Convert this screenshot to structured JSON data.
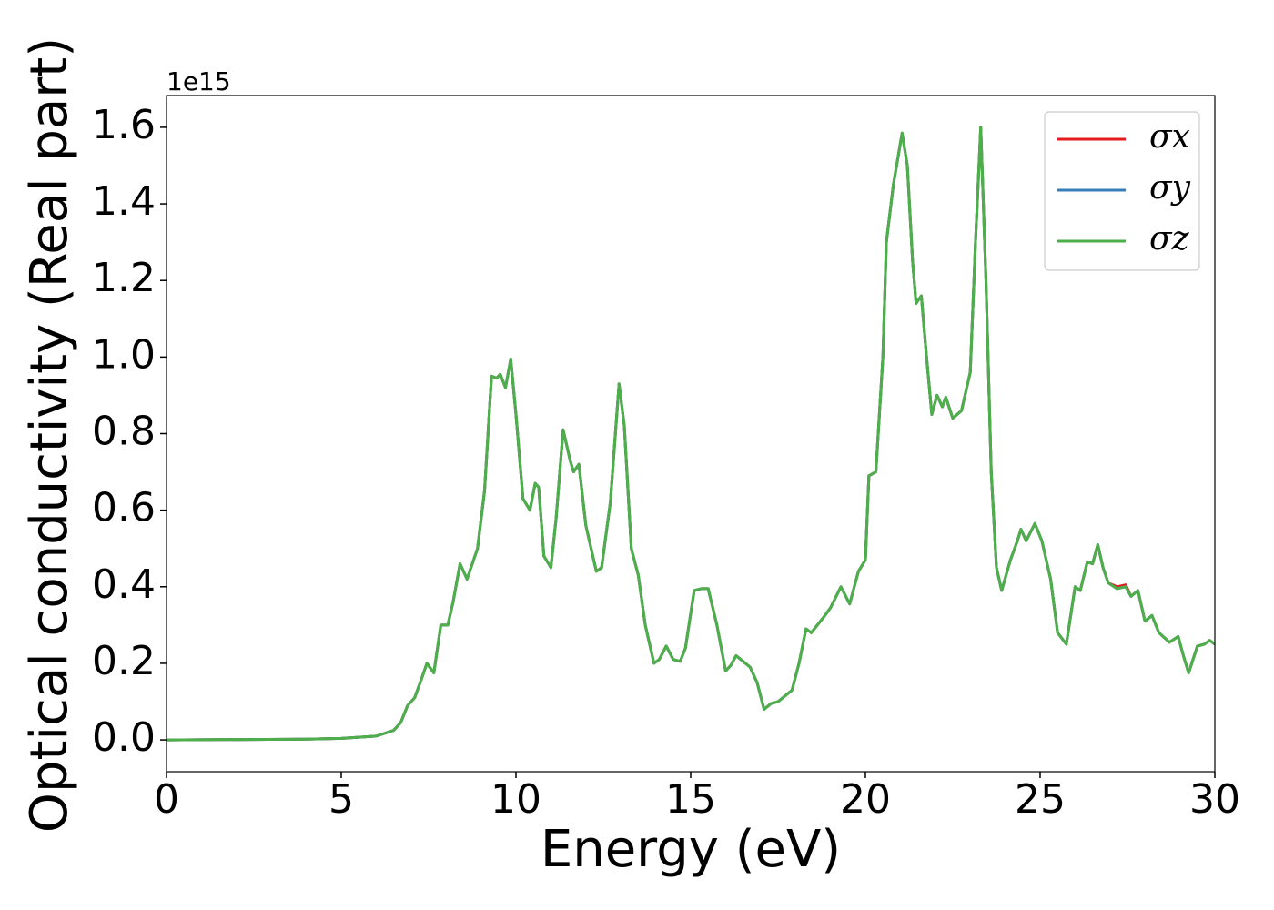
{
  "chart_data": {
    "type": "line",
    "xlabel": "Energy (eV)",
    "ylabel": "Optical conductivity (Real part)",
    "y_offset_label": "1e15",
    "x": [
      0,
      4,
      5,
      6,
      6.5,
      6.7,
      6.9,
      7.1,
      7.3,
      7.45,
      7.65,
      7.85,
      8.05,
      8.2,
      8.4,
      8.6,
      8.9,
      9.1,
      9.3,
      9.45,
      9.55,
      9.7,
      9.85,
      10,
      10.2,
      10.4,
      10.55,
      10.65,
      10.8,
      11,
      11.15,
      11.35,
      11.55,
      11.65,
      11.8,
      12,
      12.3,
      12.45,
      12.7,
      12.95,
      13.1,
      13.3,
      13.5,
      13.7,
      13.95,
      14.1,
      14.3,
      14.5,
      14.7,
      14.85,
      15.1,
      15.3,
      15.5,
      15.75,
      16,
      16.15,
      16.3,
      16.5,
      16.7,
      16.9,
      17.1,
      17.3,
      17.5,
      17.9,
      18.1,
      18.3,
      18.45,
      18.8,
      19,
      19.3,
      19.55,
      19.8,
      20,
      20.1,
      20.3,
      20.5,
      20.6,
      20.8,
      21.05,
      21.2,
      21.35,
      21.45,
      21.6,
      21.75,
      21.9,
      22.05,
      22.2,
      22.3,
      22.5,
      22.75,
      23,
      23.15,
      23.3,
      23.45,
      23.6,
      23.75,
      23.9,
      24.15,
      24.35,
      24.45,
      24.6,
      24.85,
      25.05,
      25.3,
      25.5,
      25.75,
      26,
      26.15,
      26.35,
      26.5,
      26.65,
      26.8,
      26.95,
      27.2,
      27.45,
      27.6,
      27.8,
      28,
      28.2,
      28.4,
      28.7,
      28.95,
      29.1,
      29.25,
      29.5,
      29.7,
      29.85,
      30
    ],
    "series": [
      {
        "name": "σx",
        "color": "#e41a1c",
        "values": [
          0,
          0.002,
          0.004,
          0.01,
          0.025,
          0.045,
          0.09,
          0.11,
          0.16,
          0.2,
          0.175,
          0.3,
          0.3,
          0.36,
          0.46,
          0.42,
          0.5,
          0.65,
          0.95,
          0.945,
          0.955,
          0.92,
          0.995,
          0.85,
          0.63,
          0.6,
          0.67,
          0.66,
          0.48,
          0.45,
          0.58,
          0.81,
          0.73,
          0.7,
          0.72,
          0.56,
          0.44,
          0.45,
          0.62,
          0.93,
          0.82,
          0.5,
          0.43,
          0.3,
          0.2,
          0.21,
          0.245,
          0.21,
          0.205,
          0.24,
          0.39,
          0.395,
          0.395,
          0.3,
          0.18,
          0.195,
          0.22,
          0.205,
          0.19,
          0.15,
          0.08,
          0.095,
          0.1,
          0.13,
          0.2,
          0.29,
          0.28,
          0.32,
          0.345,
          0.4,
          0.355,
          0.44,
          0.47,
          0.69,
          0.7,
          1.0,
          1.3,
          1.45,
          1.585,
          1.5,
          1.25,
          1.14,
          1.16,
          1.0,
          0.85,
          0.9,
          0.87,
          0.895,
          0.84,
          0.86,
          0.96,
          1.3,
          1.6,
          1.2,
          0.7,
          0.45,
          0.39,
          0.47,
          0.52,
          0.55,
          0.52,
          0.565,
          0.52,
          0.42,
          0.28,
          0.25,
          0.4,
          0.39,
          0.465,
          0.46,
          0.51,
          0.45,
          0.41,
          0.4,
          0.405,
          0.375,
          0.39,
          0.31,
          0.325,
          0.28,
          0.255,
          0.27,
          0.22,
          0.175,
          0.245,
          0.25,
          0.26,
          0.25
        ]
      },
      {
        "name": "σy",
        "color": "#377eb8",
        "values": [
          0,
          0.002,
          0.004,
          0.01,
          0.025,
          0.045,
          0.09,
          0.11,
          0.16,
          0.2,
          0.175,
          0.3,
          0.3,
          0.36,
          0.46,
          0.42,
          0.5,
          0.65,
          0.95,
          0.945,
          0.955,
          0.92,
          0.995,
          0.85,
          0.63,
          0.6,
          0.67,
          0.66,
          0.48,
          0.45,
          0.58,
          0.81,
          0.73,
          0.7,
          0.72,
          0.56,
          0.44,
          0.45,
          0.62,
          0.93,
          0.82,
          0.5,
          0.43,
          0.3,
          0.2,
          0.21,
          0.245,
          0.21,
          0.205,
          0.24,
          0.39,
          0.395,
          0.395,
          0.3,
          0.18,
          0.195,
          0.22,
          0.205,
          0.19,
          0.15,
          0.08,
          0.095,
          0.1,
          0.13,
          0.2,
          0.29,
          0.28,
          0.32,
          0.345,
          0.4,
          0.355,
          0.44,
          0.47,
          0.69,
          0.7,
          1.0,
          1.3,
          1.45,
          1.585,
          1.5,
          1.25,
          1.14,
          1.16,
          1.0,
          0.85,
          0.9,
          0.87,
          0.895,
          0.84,
          0.86,
          0.96,
          1.3,
          1.6,
          1.2,
          0.7,
          0.45,
          0.39,
          0.47,
          0.52,
          0.55,
          0.52,
          0.565,
          0.52,
          0.42,
          0.28,
          0.25,
          0.4,
          0.39,
          0.465,
          0.46,
          0.51,
          0.45,
          0.41,
          0.395,
          0.4,
          0.375,
          0.39,
          0.31,
          0.325,
          0.28,
          0.255,
          0.27,
          0.22,
          0.175,
          0.245,
          0.25,
          0.26,
          0.25
        ]
      },
      {
        "name": "σz",
        "color": "#4daf4a",
        "values": [
          0,
          0.002,
          0.004,
          0.01,
          0.025,
          0.045,
          0.09,
          0.11,
          0.16,
          0.2,
          0.175,
          0.3,
          0.3,
          0.36,
          0.46,
          0.42,
          0.5,
          0.65,
          0.95,
          0.945,
          0.955,
          0.92,
          0.995,
          0.85,
          0.63,
          0.6,
          0.67,
          0.66,
          0.48,
          0.45,
          0.58,
          0.81,
          0.73,
          0.7,
          0.72,
          0.56,
          0.44,
          0.45,
          0.62,
          0.93,
          0.82,
          0.5,
          0.43,
          0.3,
          0.2,
          0.21,
          0.245,
          0.21,
          0.205,
          0.24,
          0.39,
          0.395,
          0.395,
          0.3,
          0.18,
          0.195,
          0.22,
          0.205,
          0.19,
          0.15,
          0.08,
          0.095,
          0.1,
          0.13,
          0.2,
          0.29,
          0.28,
          0.32,
          0.345,
          0.4,
          0.355,
          0.44,
          0.47,
          0.69,
          0.7,
          1.0,
          1.3,
          1.45,
          1.585,
          1.5,
          1.25,
          1.14,
          1.16,
          1.0,
          0.85,
          0.9,
          0.87,
          0.895,
          0.84,
          0.86,
          0.96,
          1.3,
          1.6,
          1.2,
          0.7,
          0.45,
          0.39,
          0.47,
          0.52,
          0.55,
          0.52,
          0.565,
          0.52,
          0.42,
          0.28,
          0.25,
          0.4,
          0.39,
          0.465,
          0.46,
          0.51,
          0.45,
          0.41,
          0.395,
          0.4,
          0.375,
          0.39,
          0.31,
          0.325,
          0.28,
          0.255,
          0.27,
          0.22,
          0.175,
          0.245,
          0.25,
          0.26,
          0.25
        ]
      }
    ],
    "xlim": [
      0,
      30
    ],
    "xticks": [
      0,
      5,
      10,
      15,
      20,
      25,
      30
    ],
    "ylim": [
      -0.083,
      1.683
    ],
    "yticks": [
      {
        "value": 0,
        "label": "0.0"
      },
      0.2,
      0.4,
      0.6,
      0.8,
      {
        "value": 1,
        "label": "1.0"
      },
      1.2,
      1.4,
      1.6
    ],
    "grid": false,
    "legend": "upper right"
  }
}
